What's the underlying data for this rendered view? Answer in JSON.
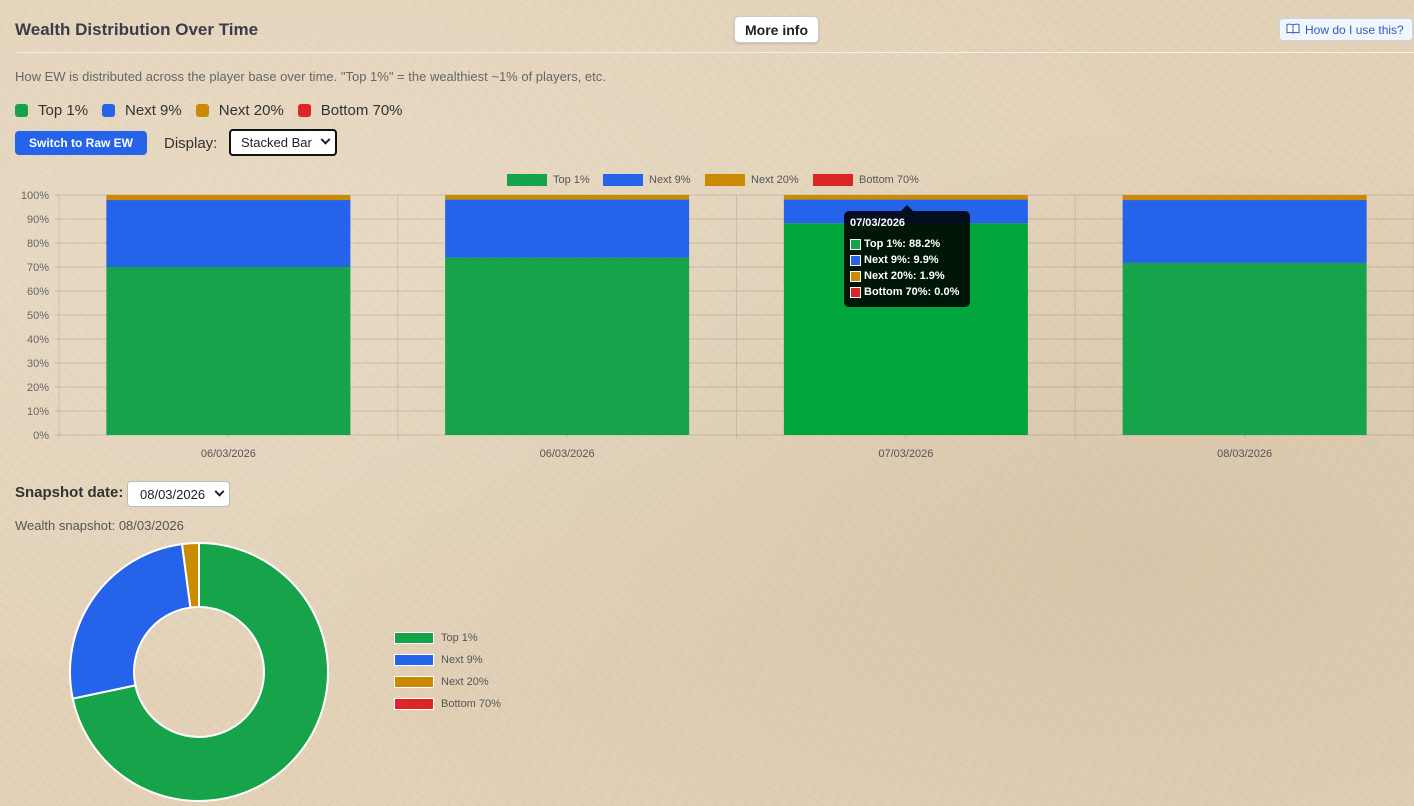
{
  "header": {
    "title": "Wealth Distribution Over Time",
    "more_info_label": "More info",
    "how_to_label": "How do I use this?",
    "how_to_icon": "book-icon"
  },
  "description": "How EW is distributed across the player base over time. \"Top 1%\" = the wealthiest ~1% of players, etc.",
  "legend": [
    {
      "label": "Top 1%",
      "color": "#16a34a"
    },
    {
      "label": "Next 9%",
      "color": "#2563eb"
    },
    {
      "label": "Next 20%",
      "color": "#ca8a04"
    },
    {
      "label": "Bottom 70%",
      "color": "#dc2626"
    }
  ],
  "controls": {
    "raw_button_label": "Switch to Raw EW",
    "display_label": "Display:",
    "display_value": "Stacked Bar"
  },
  "chart_data": [
    {
      "type": "bar",
      "stacked": true,
      "categories": [
        "06/03/2026",
        "06/03/2026",
        "07/03/2026",
        "08/03/2026"
      ],
      "series": [
        {
          "name": "Top 1%",
          "color": "#16a34a",
          "values": [
            70.0,
            73.9,
            88.2,
            71.7
          ]
        },
        {
          "name": "Next 9%",
          "color": "#2563eb",
          "values": [
            27.9,
            24.2,
            9.9,
            26.2
          ]
        },
        {
          "name": "Next 20%",
          "color": "#ca8a04",
          "values": [
            2.1,
            1.9,
            1.9,
            2.1
          ]
        },
        {
          "name": "Bottom 70%",
          "color": "#dc2626",
          "values": [
            0.0,
            0.0,
            0.0,
            0.0
          ]
        }
      ],
      "yticks": [
        "0%",
        "10%",
        "20%",
        "30%",
        "40%",
        "50%",
        "60%",
        "70%",
        "80%",
        "90%",
        "100%"
      ],
      "ylim": [
        0,
        100
      ],
      "grid": true,
      "legend_position": "top",
      "tooltip": {
        "title": "07/03/2026",
        "rows": [
          {
            "text": "Top 1%: 88.2%",
            "color": "#16a34a"
          },
          {
            "text": "Next 9%: 9.9%",
            "color": "#2563eb"
          },
          {
            "text": "Next 20%: 1.9%",
            "color": "#ca8a04"
          },
          {
            "text": "Bottom 70%: 0.0%",
            "color": "#dc2626"
          }
        ]
      }
    },
    {
      "type": "pie",
      "doughnut": true,
      "labels": [
        "Top 1%",
        "Next 9%",
        "Next 20%",
        "Bottom 70%"
      ],
      "values": [
        71.7,
        26.2,
        2.1,
        0.0
      ],
      "colors": [
        "#16a34a",
        "#2563eb",
        "#ca8a04",
        "#dc2626"
      ],
      "legend_position": "right"
    }
  ],
  "snapshot": {
    "label": "Snapshot date:",
    "value": "08/03/2026",
    "title": "Wealth snapshot: 08/03/2026"
  }
}
